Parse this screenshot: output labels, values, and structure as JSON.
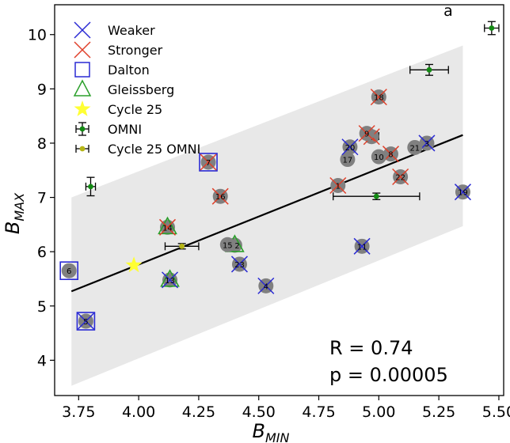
{
  "chart_data": {
    "type": "scatter",
    "panel_label": "a",
    "xlabel_main": "B",
    "xlabel_sub": "MIN",
    "ylabel_main": "B",
    "ylabel_sub": "MAX",
    "xlim": [
      3.65,
      5.52
    ],
    "ylim": [
      3.35,
      10.55
    ],
    "xticks": [
      3.75,
      4.0,
      4.25,
      4.5,
      4.75,
      5.0,
      5.25,
      5.5
    ],
    "xtick_labels": [
      "3.75",
      "4.00",
      "4.25",
      "4.50",
      "4.75",
      "5.00",
      "5.25",
      "5.50"
    ],
    "yticks": [
      4,
      5,
      6,
      7,
      8,
      9,
      10
    ],
    "ytick_labels": [
      "4",
      "5",
      "6",
      "7",
      "8",
      "9",
      "10"
    ],
    "grid": false,
    "legend_position": "top-left",
    "legend": [
      {
        "label": "Weaker",
        "marker": "x",
        "color": "#2a2ad4"
      },
      {
        "label": "Stronger",
        "marker": "x",
        "color": "#e0402a"
      },
      {
        "label": "Dalton",
        "marker": "square",
        "color": "#2a2ad4"
      },
      {
        "label": "Gleissberg",
        "marker": "triangle",
        "color": "#2ca02c"
      },
      {
        "label": "Cycle 25",
        "marker": "star",
        "color": "#ffff33"
      },
      {
        "label": "OMNI",
        "marker": "errorbar-dot",
        "color": "#138a13"
      },
      {
        "label": "Cycle 25 OMNI",
        "marker": "errorbar-dot",
        "color": "#b5b516"
      }
    ],
    "fit_line": {
      "x": [
        3.72,
        5.35
      ],
      "y": [
        5.27,
        8.15
      ],
      "color": "#000000"
    },
    "band": {
      "x": [
        3.72,
        5.35
      ],
      "y_low": [
        3.53,
        6.47
      ],
      "y_high": [
        7.0,
        9.8
      ],
      "color": "#e8e8e8"
    },
    "cycles": [
      {
        "label": "1",
        "x": 4.83,
        "y": 7.22,
        "type": "Stronger",
        "special": ""
      },
      {
        "label": "2",
        "x": 4.97,
        "y": 8.12,
        "type": "Stronger",
        "special": ""
      },
      {
        "label": "3",
        "x": 5.2,
        "y": 8.0,
        "type": "Weaker",
        "special": ""
      },
      {
        "label": "4",
        "x": 4.53,
        "y": 5.37,
        "type": "Weaker",
        "special": ""
      },
      {
        "label": "5",
        "x": 3.78,
        "y": 4.72,
        "type": "Weaker",
        "special": "Dalton"
      },
      {
        "label": "6",
        "x": 3.71,
        "y": 5.65,
        "type": "",
        "special": "Dalton"
      },
      {
        "label": "7",
        "x": 4.29,
        "y": 7.65,
        "type": "Stronger",
        "special": "Dalton"
      },
      {
        "label": "8",
        "x": 5.05,
        "y": 7.8,
        "type": "Stronger",
        "special": ""
      },
      {
        "label": "9",
        "x": 4.95,
        "y": 8.18,
        "type": "Stronger",
        "special": ""
      },
      {
        "label": "10",
        "x": 5.0,
        "y": 7.75,
        "type": "",
        "special": ""
      },
      {
        "label": "11",
        "x": 4.93,
        "y": 6.1,
        "type": "Weaker",
        "special": ""
      },
      {
        "label": "12",
        "x": 4.4,
        "y": 6.12,
        "type": "",
        "special": "Gleissberg"
      },
      {
        "label": "13",
        "x": 4.13,
        "y": 5.48,
        "type": "Weaker",
        "special": "Gleissberg"
      },
      {
        "label": "14",
        "x": 4.12,
        "y": 6.45,
        "type": "Stronger",
        "special": "Gleissberg"
      },
      {
        "label": "15",
        "x": 4.37,
        "y": 6.13,
        "type": "",
        "special": ""
      },
      {
        "label": "16",
        "x": 4.34,
        "y": 7.02,
        "type": "Stronger",
        "special": ""
      },
      {
        "label": "17",
        "x": 4.87,
        "y": 7.7,
        "type": "",
        "special": ""
      },
      {
        "label": "18",
        "x": 5.0,
        "y": 8.85,
        "type": "Stronger",
        "special": ""
      },
      {
        "label": "19",
        "x": 5.35,
        "y": 7.1,
        "type": "Weaker",
        "special": ""
      },
      {
        "label": "20",
        "x": 4.88,
        "y": 7.93,
        "type": "Weaker",
        "special": ""
      },
      {
        "label": "21",
        "x": 5.15,
        "y": 7.92,
        "type": "",
        "special": ""
      },
      {
        "label": "22",
        "x": 5.09,
        "y": 7.38,
        "type": "Stronger",
        "special": ""
      },
      {
        "label": "23",
        "x": 4.42,
        "y": 5.77,
        "type": "Weaker",
        "special": ""
      }
    ],
    "cycle25": {
      "x": 3.98,
      "y": 5.75
    },
    "omni": [
      {
        "x": 5.47,
        "y": 10.12,
        "xerr": 0.03,
        "yerr": 0.12
      },
      {
        "x": 5.21,
        "y": 9.35,
        "xerr": 0.08,
        "yerr": 0.1
      },
      {
        "x": 4.98,
        "y": 8.13,
        "xerr": 0.02,
        "yerr": 0.08
      },
      {
        "x": 4.99,
        "y": 7.02,
        "xerr": 0.18,
        "yerr": 0.06
      },
      {
        "x": 3.8,
        "y": 7.2,
        "xerr": 0.02,
        "yerr": 0.17
      }
    ],
    "cycle25_omni": {
      "x": 4.18,
      "y": 6.1,
      "xerr": 0.07,
      "yerr": 0.05
    },
    "stats": {
      "r_text": "R = 0.74",
      "p_text": "p = 0.00005"
    }
  }
}
